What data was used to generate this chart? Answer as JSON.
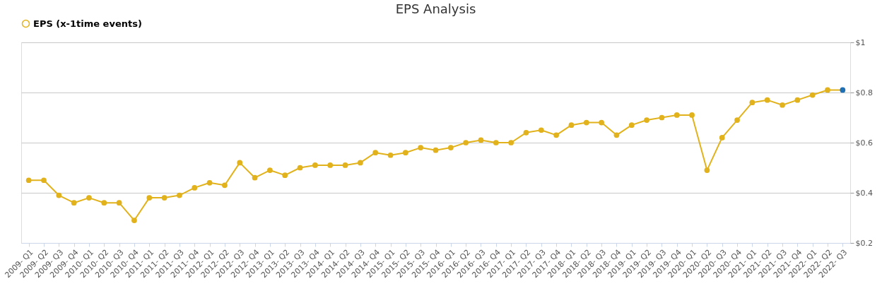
{
  "chart_data": {
    "type": "line",
    "title": "EPS Analysis",
    "categories": [
      "2009- Q1",
      "2009- Q2",
      "2009- Q3",
      "2009- Q4",
      "2010- Q1",
      "2010- Q2",
      "2010- Q3",
      "2010- Q4",
      "2011- Q1",
      "2011- Q2",
      "2011- Q3",
      "2011- Q4",
      "2012- Q1",
      "2012- Q2",
      "2012- Q3",
      "2012- Q4",
      "2013- Q1",
      "2013- Q2",
      "2013- Q3",
      "2013- Q4",
      "2014- Q1",
      "2014- Q2",
      "2014- Q3",
      "2014- Q4",
      "2015- Q1",
      "2015- Q2",
      "2015- Q3",
      "2015- Q4",
      "2016- Q1",
      "2016- Q2",
      "2016- Q3",
      "2016- Q4",
      "2017- Q1",
      "2017- Q2",
      "2017- Q3",
      "2017- Q4",
      "2018- Q1",
      "2018- Q2",
      "2018- Q3",
      "2018- Q4",
      "2019- Q1",
      "2019- Q2",
      "2019- Q3",
      "2019- Q4",
      "2020- Q1",
      "2020- Q2",
      "2020- Q3",
      "2020- Q4",
      "2021- Q1",
      "2021- Q2",
      "2021- Q3",
      "2021- Q4",
      "2022- Q1",
      "2022- Q2",
      "2022- Q3"
    ],
    "series": [
      {
        "name": "EPS (x-1time events)",
        "color": "#e2b21c",
        "colors": [
          "#e2b21c",
          "#e2b21c",
          "#e2b21c",
          "#e2b21c",
          "#e2b21c",
          "#e2b21c",
          "#e2b21c",
          "#e2b21c",
          "#e2b21c",
          "#e2b21c",
          "#e2b21c",
          "#e2b21c",
          "#e2b21c",
          "#e2b21c",
          "#e2b21c",
          "#e2b21c",
          "#e2b21c",
          "#e2b21c",
          "#e2b21c",
          "#e2b21c",
          "#e2b21c",
          "#e2b21c",
          "#e2b21c",
          "#e2b21c",
          "#e2b21c",
          "#e2b21c",
          "#e2b21c",
          "#e2b21c",
          "#e2b21c",
          "#e2b21c",
          "#e2b21c",
          "#e2b21c",
          "#e2b21c",
          "#e2b21c",
          "#e2b21c",
          "#e2b21c",
          "#e2b21c",
          "#e2b21c",
          "#e2b21c",
          "#e2b21c",
          "#e2b21c",
          "#e2b21c",
          "#e2b21c",
          "#e2b21c",
          "#e2b21c",
          "#e2b21c",
          "#e2b21c",
          "#e2b21c",
          "#e2b21c",
          "#e2b21c",
          "#e2b21c",
          "#e2b21c",
          "#e2b21c",
          "#e2b21c",
          "#1f6fb4"
        ],
        "values": [
          0.45,
          0.45,
          0.39,
          0.36,
          0.38,
          0.36,
          0.36,
          0.29,
          0.38,
          0.38,
          0.39,
          0.42,
          0.44,
          0.43,
          0.52,
          0.46,
          0.49,
          0.47,
          0.5,
          0.51,
          0.51,
          0.51,
          0.52,
          0.56,
          0.55,
          0.56,
          0.58,
          0.57,
          0.58,
          0.6,
          0.61,
          0.6,
          0.6,
          0.64,
          0.65,
          0.63,
          0.67,
          0.68,
          0.68,
          0.63,
          0.67,
          0.69,
          0.7,
          0.71,
          0.71,
          0.49,
          0.62,
          0.69,
          0.76,
          0.77,
          0.75,
          0.77,
          0.79,
          0.81,
          0.81
        ]
      }
    ],
    "ylim": [
      0.2,
      1.0
    ],
    "yticks": [
      {
        "value": 0.2,
        "label": "$0.2"
      },
      {
        "value": 0.4,
        "label": "$0.4"
      },
      {
        "value": 0.6,
        "label": "$0.6"
      },
      {
        "value": 0.8,
        "label": "$0.8"
      },
      {
        "value": 1.0,
        "label": "$1"
      }
    ],
    "grid": "y",
    "legend": "top",
    "marker": "circle",
    "line_style": "solid"
  }
}
